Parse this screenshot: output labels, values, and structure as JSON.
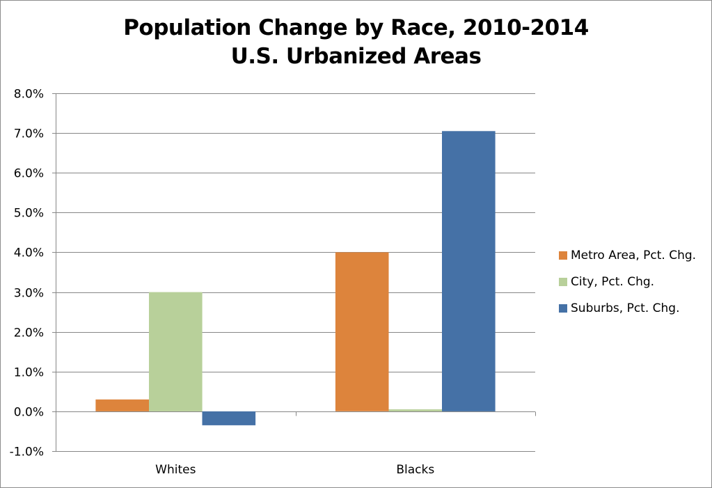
{
  "chart_data": {
    "type": "bar",
    "title": "Population Change by Race, 2010-2014",
    "subtitle": "U.S. Urbanized Areas",
    "xlabel": "",
    "ylabel": "",
    "categories": [
      "Whites",
      "Blacks"
    ],
    "series": [
      {
        "name": "Metro Area, Pct. Chg.",
        "color": "#dd843c",
        "values": [
          0.3,
          4.0
        ]
      },
      {
        "name": "City, Pct. Chg.",
        "color": "#b8d09a",
        "values": [
          3.0,
          0.05
        ]
      },
      {
        "name": "Suburbs, Pct. Chg.",
        "color": "#4571a6",
        "values": [
          -0.35,
          7.05
        ]
      }
    ],
    "ylim": [
      -1.0,
      8.0
    ],
    "yticks": [
      8.0,
      7.0,
      6.0,
      5.0,
      4.0,
      3.0,
      2.0,
      1.0,
      0.0,
      -1.0
    ],
    "ytick_labels": [
      "8.0%",
      "7.0%",
      "6.0%",
      "5.0%",
      "4.0%",
      "3.0%",
      "2.0%",
      "1.0%",
      "0.0%",
      "-1.0%"
    ],
    "grid": true,
    "legend_position": "right",
    "gridline_color": "#868686"
  }
}
